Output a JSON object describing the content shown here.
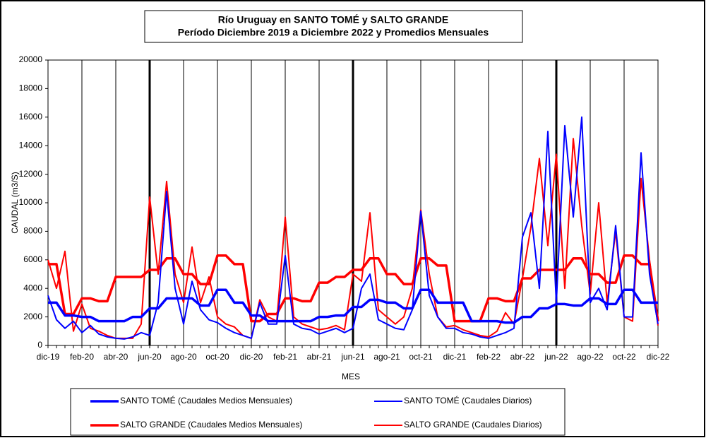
{
  "chart_data": {
    "type": "line",
    "title": "Río Uruguay en SANTO TOMÉ y  SALTO GRANDE",
    "subtitle": "Período Diciembre 2019 a Diciembre 2022 y Promedios Mensuales",
    "x_label": "MES",
    "y_label": "CAUDAL (m3/S)",
    "ylim": [
      0,
      20000
    ],
    "yticks": [
      0,
      2000,
      4000,
      6000,
      8000,
      10000,
      12000,
      14000,
      16000,
      18000,
      20000
    ],
    "grid": true,
    "categories": [
      "dic-19",
      null,
      null,
      null,
      "feb-20",
      null,
      null,
      null,
      "abr-20",
      null,
      null,
      null,
      "jun-20",
      null,
      null,
      null,
      "ago-20",
      null,
      null,
      null,
      "oct-20",
      null,
      null,
      null,
      "dic-20",
      null,
      null,
      null,
      "feb-21",
      null,
      null,
      null,
      "abr-21",
      null,
      null,
      null,
      "jun-21",
      null,
      null,
      null,
      "ago-21",
      null,
      null,
      null,
      "oct-21",
      null,
      null,
      null,
      "dic-21",
      null,
      null,
      null,
      "feb-22",
      null,
      null,
      null,
      "abr-22",
      null,
      null,
      null,
      "jun-22",
      null,
      null,
      null,
      "ago-22",
      null,
      null,
      null,
      "oct-22",
      null,
      null,
      null,
      "dic-22"
    ],
    "series": [
      {
        "name": "SANTO TOMÉ (Caudales Medios Mensuales)",
        "color": "#0000ff",
        "values": [
          3000,
          3000,
          2100,
          2100,
          2000,
          2000,
          1700,
          1700,
          1700,
          1700,
          2000,
          2000,
          2600,
          2600,
          3300,
          3300,
          3300,
          3300,
          2800,
          2800,
          3900,
          3900,
          3000,
          3000,
          2100,
          2100,
          1700,
          1700,
          1700,
          1700,
          1700,
          1700,
          2000,
          2000,
          2100,
          2100,
          2700,
          2700,
          3200,
          3200,
          3000,
          3000,
          2600,
          2600,
          3900,
          3900,
          3000,
          3000,
          3000,
          3000,
          1700,
          1700,
          1700,
          1700,
          1600,
          1600,
          2000,
          2000,
          2600,
          2600,
          2900,
          2900,
          2800,
          2800,
          3300,
          3300,
          2900,
          2900,
          3900,
          3900,
          3000,
          3000,
          3000
        ]
      },
      {
        "name": "SANTO TOMÉ (Caudales Diarios)",
        "color": "#0000ff",
        "values": [
          3500,
          1800,
          1200,
          1700,
          900,
          1400,
          800,
          600,
          500,
          450,
          600,
          900,
          700,
          3000,
          10800,
          4000,
          1500,
          4500,
          2500,
          1800,
          1600,
          1200,
          900,
          700,
          500,
          3000,
          1500,
          1500,
          6300,
          1500,
          1200,
          1100,
          800,
          1000,
          1200,
          900,
          1200,
          4000,
          5000,
          1800,
          1500,
          1200,
          1100,
          2500,
          9400,
          3500,
          2000,
          1200,
          1200,
          900,
          800,
          600,
          500,
          700,
          900,
          1200,
          7600,
          9300,
          4000,
          15000,
          3000,
          15400,
          9000,
          16000,
          3000,
          4000,
          2500,
          8400,
          2000,
          2000,
          13500,
          5000,
          1500
        ]
      },
      {
        "name": "SALTO GRANDE (Caudales Medios Mensuales)",
        "color": "#ff0000",
        "values": [
          5700,
          5700,
          2200,
          2200,
          3300,
          3300,
          3100,
          3100,
          4800,
          4800,
          4800,
          4800,
          5300,
          5300,
          6100,
          6100,
          5000,
          5000,
          4300,
          4300,
          6300,
          6300,
          5700,
          5700,
          1700,
          1700,
          2200,
          2200,
          3300,
          3300,
          3100,
          3100,
          4400,
          4400,
          4800,
          4800,
          5300,
          5300,
          6100,
          6100,
          5000,
          5000,
          4300,
          4300,
          6100,
          6100,
          5600,
          5600,
          1700,
          1700,
          1700,
          1700,
          3300,
          3300,
          3100,
          3100,
          4700,
          4700,
          5300,
          5300,
          5300,
          5300,
          6100,
          6100,
          5000,
          5000,
          4400,
          4400,
          6300,
          6300,
          5700,
          5700,
          1700
        ]
      },
      {
        "name": "SALTO GRANDE (Caudales Diarios)",
        "color": "#ff0000",
        "values": [
          6000,
          4000,
          6600,
          1000,
          2900,
          1200,
          1000,
          700,
          500,
          500,
          500,
          1500,
          10400,
          5000,
          11500,
          5000,
          3000,
          6900,
          3000,
          4800,
          2000,
          1500,
          1300,
          700,
          500,
          3200,
          2000,
          1700,
          9000,
          2000,
          1500,
          1300,
          1100,
          1200,
          1400,
          1100,
          5000,
          4500,
          9300,
          2500,
          2000,
          1500,
          2000,
          4000,
          9500,
          5000,
          2000,
          1300,
          1400,
          1100,
          900,
          700,
          600,
          1000,
          2300,
          1500,
          4700,
          8300,
          13100,
          7000,
          13400,
          4000,
          14500,
          8400,
          3600,
          10000,
          3000,
          8000,
          2000,
          1700,
          11700,
          6000,
          1400
        ]
      }
    ]
  }
}
